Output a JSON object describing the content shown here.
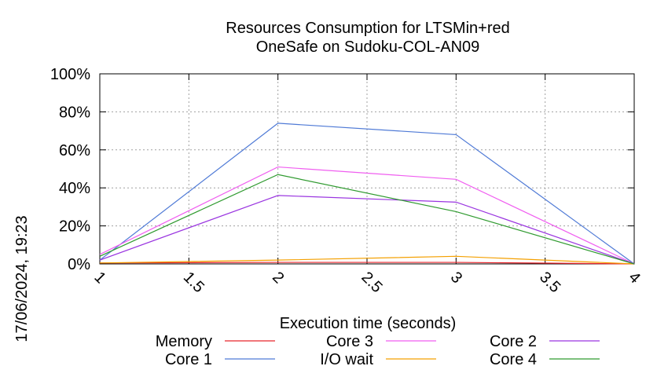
{
  "chart_data": {
    "type": "line",
    "title": [
      "Resources Consumption for LTSMin+red",
      "OneSafe on Sudoku-COL-AN09"
    ],
    "xlabel": "Execution time (seconds)",
    "ylabel": "",
    "x": [
      1,
      2,
      3,
      4
    ],
    "xlim": [
      1,
      4
    ],
    "ylim": [
      0,
      100
    ],
    "xticks": [
      "1",
      "1.5",
      "2",
      "2.5",
      "3",
      "3.5",
      "4"
    ],
    "yticks": [
      "0%",
      "20%",
      "40%",
      "60%",
      "80%",
      "100%"
    ],
    "grid": true,
    "legend_position": "bottom",
    "series": [
      {
        "name": "Memory",
        "color": "#e8252b",
        "values": [
          0.5,
          0.8,
          0.8,
          0
        ]
      },
      {
        "name": "Core 1",
        "color": "#4f7ad6",
        "values": [
          2,
          74,
          68,
          0
        ]
      },
      {
        "name": "Core 3",
        "color": "#f05ef0",
        "values": [
          5,
          51,
          44.5,
          0
        ]
      },
      {
        "name": "I/O wait",
        "color": "#f4a000",
        "values": [
          0.5,
          2,
          4,
          0
        ]
      },
      {
        "name": "Core 2",
        "color": "#9a35e0",
        "values": [
          2,
          36,
          32.5,
          0
        ]
      },
      {
        "name": "Core 4",
        "color": "#2f9a2f",
        "values": [
          4,
          47,
          27.5,
          0
        ]
      }
    ]
  },
  "timestamp": "17/06/2024, 19:23"
}
